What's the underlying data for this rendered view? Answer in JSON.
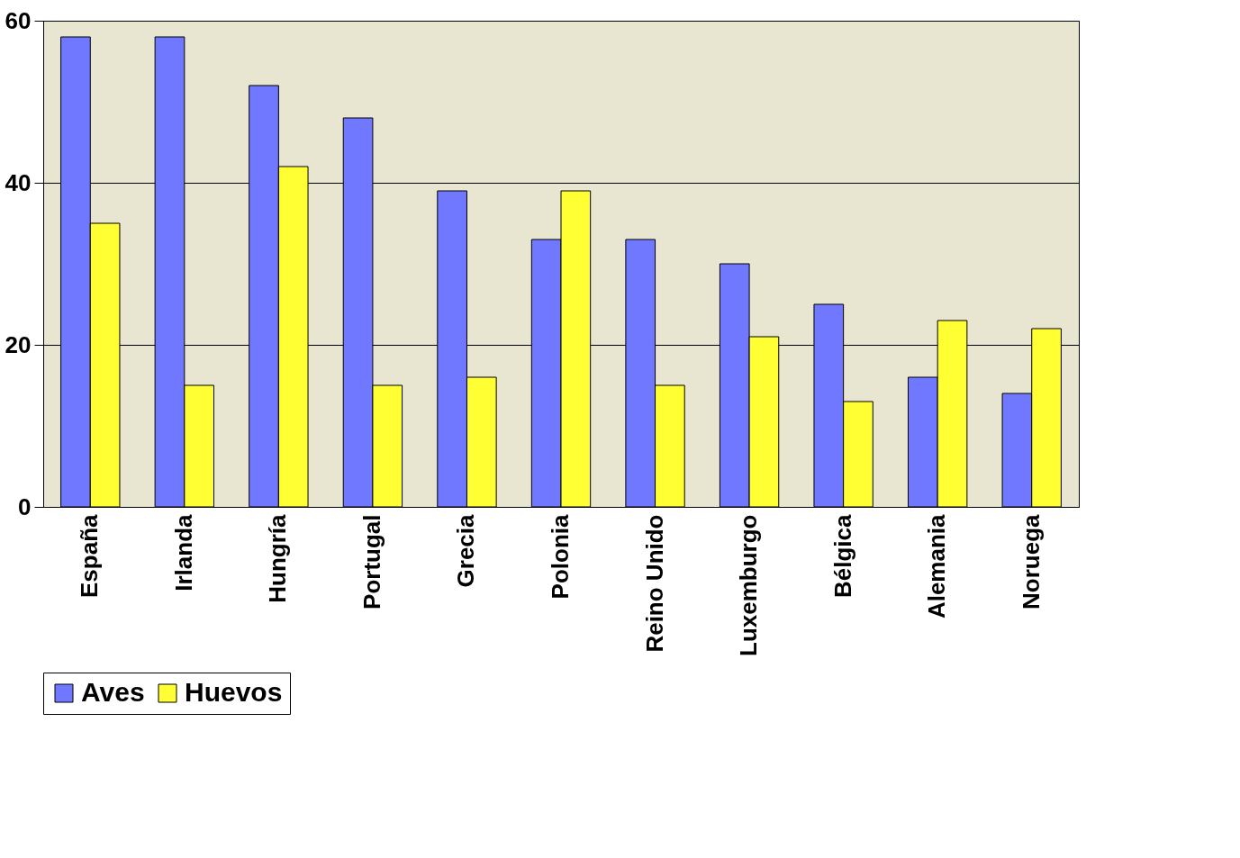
{
  "chart_data": {
    "type": "bar",
    "categories": [
      "España",
      "Irlanda",
      "Hungría",
      "Portugal",
      "Grecia",
      "Polonia",
      "Reino Unido",
      "Luxemburgo",
      "Bélgica",
      "Alemania",
      "Noruega"
    ],
    "series": [
      {
        "name": "Aves",
        "color": "#6f78ff",
        "values": [
          58,
          58,
          52,
          48,
          39,
          33,
          33,
          30,
          25,
          16,
          14
        ]
      },
      {
        "name": "Huevos",
        "color": "#ffff33",
        "values": [
          35,
          15,
          42,
          15,
          16,
          39,
          15,
          21,
          13,
          23,
          22
        ]
      }
    ],
    "ylim": [
      0,
      60
    ],
    "yticks": [
      0,
      20,
      40,
      60
    ],
    "grid": "y",
    "legend": "bottom"
  }
}
